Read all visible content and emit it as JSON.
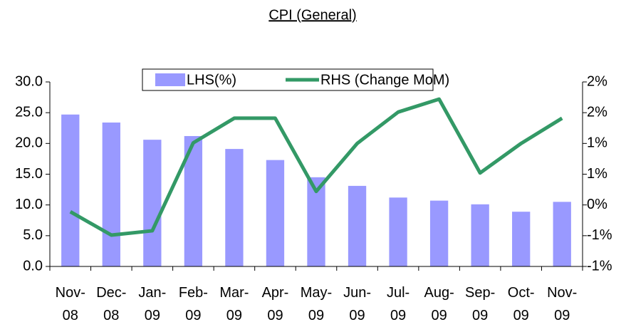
{
  "chart_data": {
    "type": "bar_line",
    "title": "CPI (General)",
    "categories": [
      "Nov-08",
      "Dec-08",
      "Jan-09",
      "Feb-09",
      "Mar-09",
      "Apr-09",
      "May-09",
      "Jun-09",
      "Jul-09",
      "Aug-09",
      "Sep-09",
      "Oct-09",
      "Nov-09"
    ],
    "series": [
      {
        "name": "LHS(%)",
        "type": "bar",
        "color": "#9999ff",
        "axis": "y",
        "values": [
          24.7,
          23.4,
          20.6,
          21.2,
          19.1,
          17.3,
          14.5,
          13.1,
          11.2,
          10.7,
          10.1,
          8.9,
          10.5
        ]
      },
      {
        "name": "RHS (Change MoM)",
        "type": "line",
        "color": "#339966",
        "axis": "y2",
        "values": [
          -0.11,
          -0.49,
          -0.42,
          1.01,
          1.41,
          1.41,
          0.22,
          1.0,
          1.51,
          1.72,
          0.52,
          1.0,
          1.41
        ]
      }
    ],
    "ylim": [
      0,
      30
    ],
    "yticks": [
      {
        "value": 0,
        "label": "0.0"
      },
      {
        "value": 5,
        "label": "5.0"
      },
      {
        "value": 10,
        "label": "10.0"
      },
      {
        "value": 15,
        "label": "15.0"
      },
      {
        "value": 20,
        "label": "20.0"
      },
      {
        "value": 25,
        "label": "25.0"
      },
      {
        "value": 30,
        "label": "30.0"
      }
    ],
    "y2lim": [
      -1,
      2
    ],
    "y2ticks": [
      {
        "value": -1,
        "label": "-1%"
      },
      {
        "value": -0.5,
        "label": "-1%"
      },
      {
        "value": 0,
        "label": "0%"
      },
      {
        "value": 0.5,
        "label": "1%"
      },
      {
        "value": 1,
        "label": "1%"
      },
      {
        "value": 1.5,
        "label": "2%"
      },
      {
        "value": 2,
        "label": "2%"
      }
    ],
    "grid": false,
    "legend": "top"
  }
}
